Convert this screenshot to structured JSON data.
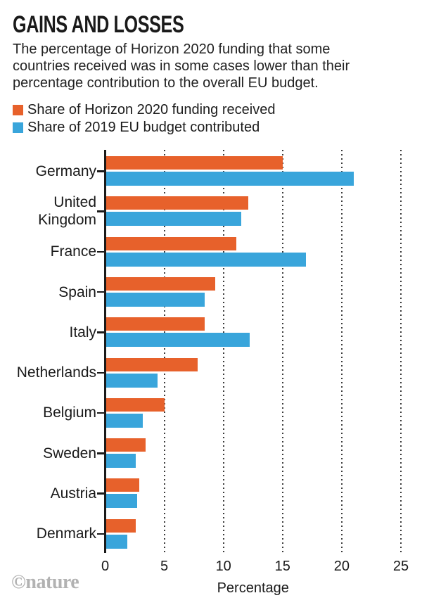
{
  "header": {
    "title": "GAINS AND LOSSES",
    "subtitle_lines": [
      "The percentage of Horizon 2020 funding that some",
      "countries received was in some cases lower than their",
      "percentage contribution to the overall EU budget."
    ]
  },
  "legend": [
    {
      "label": "Share of Horizon 2020 funding received",
      "color": "#e7612b"
    },
    {
      "label": "Share of 2019 EU budget contributed",
      "color": "#39a5db"
    }
  ],
  "chart_data": {
    "type": "bar",
    "orientation": "horizontal",
    "title": "GAINS AND LOSSES",
    "categories": [
      "Germany",
      "United Kingdom",
      "France",
      "Spain",
      "Italy",
      "Netherlands",
      "Belgium",
      "Sweden",
      "Austria",
      "Denmark"
    ],
    "series": [
      {
        "name": "Share of Horizon 2020 funding received",
        "color": "#e7612b",
        "values": [
          15.0,
          12.1,
          11.1,
          9.3,
          8.4,
          7.8,
          5.0,
          3.4,
          2.9,
          2.6
        ]
      },
      {
        "name": "Share of 2019 EU budget contributed",
        "color": "#39a5db",
        "values": [
          21.0,
          11.5,
          17.0,
          8.4,
          12.2,
          4.4,
          3.2,
          2.6,
          2.7,
          1.9
        ]
      }
    ],
    "xlabel": "Percentage",
    "ylabel": "",
    "xlim": [
      0,
      25
    ],
    "xticks": [
      0,
      5,
      10,
      15,
      20,
      25
    ],
    "grid": "dotted-vertical",
    "legend_position": "top-left"
  },
  "styles": {
    "axis_color": "#1a1a1a",
    "grid_color": "#3c3c3c",
    "credit_color": "#b2b2b2"
  },
  "footer": {
    "credit": "©nature"
  }
}
